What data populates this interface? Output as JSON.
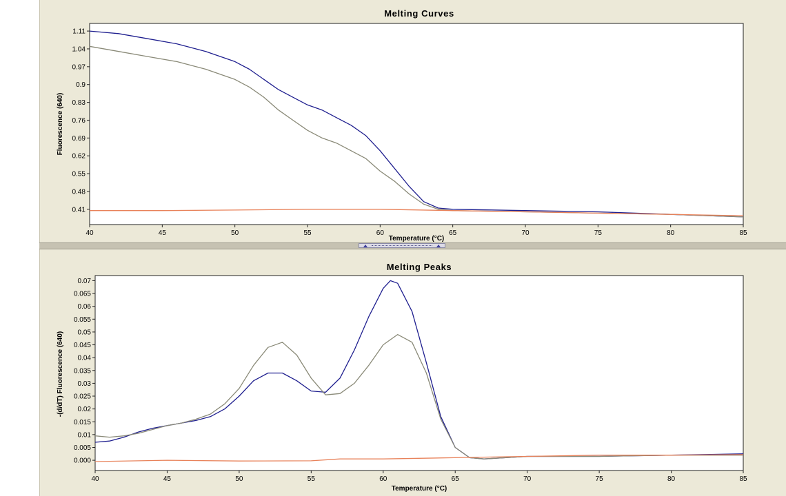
{
  "chart_data": [
    {
      "type": "line",
      "title": "Melting Curves",
      "xlabel": "Temperature (°C)",
      "ylabel": "Fluorescence (640)",
      "xlim": [
        40,
        85
      ],
      "ylim": [
        0.35,
        1.14
      ],
      "x_ticks": [
        "40",
        "45",
        "50",
        "55",
        "60",
        "65",
        "70",
        "75",
        "80",
        "85"
      ],
      "y_ticks": [
        "1.11",
        "1.04",
        "0.97",
        "0.9",
        "0.83",
        "0.76",
        "0.69",
        "0.62",
        "0.55",
        "0.48",
        "0.41"
      ],
      "grid": false,
      "series": [
        {
          "color": "#1f1f8f",
          "x": [
            40,
            42,
            44,
            46,
            48,
            50,
            51,
            52,
            53,
            54,
            55,
            56,
            57,
            58,
            59,
            60,
            61,
            62,
            63,
            64,
            65,
            70,
            75,
            80,
            85
          ],
          "y": [
            1.11,
            1.1,
            1.08,
            1.06,
            1.03,
            0.99,
            0.96,
            0.92,
            0.88,
            0.85,
            0.82,
            0.8,
            0.77,
            0.74,
            0.7,
            0.64,
            0.57,
            0.5,
            0.44,
            0.415,
            0.41,
            0.405,
            0.4,
            0.39,
            0.38
          ]
        },
        {
          "color": "#8a8a78",
          "x": [
            40,
            42,
            44,
            46,
            48,
            50,
            51,
            52,
            53,
            54,
            55,
            56,
            57,
            58,
            59,
            60,
            61,
            62,
            63,
            64,
            65,
            70,
            75,
            80,
            85
          ],
          "y": [
            1.05,
            1.03,
            1.01,
            0.99,
            0.96,
            0.92,
            0.89,
            0.85,
            0.8,
            0.76,
            0.72,
            0.69,
            0.67,
            0.64,
            0.61,
            0.56,
            0.52,
            0.47,
            0.43,
            0.41,
            0.405,
            0.4,
            0.395,
            0.39,
            0.38
          ]
        },
        {
          "color": "#e8825a",
          "x": [
            40,
            45,
            50,
            55,
            60,
            65,
            70,
            75,
            80,
            85
          ],
          "y": [
            0.405,
            0.405,
            0.407,
            0.41,
            0.41,
            0.405,
            0.4,
            0.395,
            0.39,
            0.385
          ]
        }
      ]
    },
    {
      "type": "line",
      "title": "Melting Peaks",
      "xlabel": "Temperature (°C)",
      "ylabel": "-(d/dT) Fluorescence (640)",
      "xlim": [
        40,
        85
      ],
      "ylim": [
        -0.004,
        0.072
      ],
      "x_ticks": [
        "40",
        "45",
        "50",
        "55",
        "60",
        "65",
        "70",
        "75",
        "80",
        "85"
      ],
      "y_ticks": [
        "0.07",
        "0.065",
        "0.06",
        "0.055",
        "0.05",
        "0.045",
        "0.04",
        "0.035",
        "0.03",
        "0.025",
        "0.02",
        "0.015",
        "0.01",
        "0.005",
        "0.000"
      ],
      "grid": false,
      "series": [
        {
          "color": "#1f1f8f",
          "x": [
            40,
            41,
            42,
            43,
            44,
            45,
            46,
            47,
            48,
            49,
            50,
            51,
            52,
            53,
            54,
            55,
            56,
            57,
            58,
            59,
            60,
            60.5,
            61,
            62,
            63,
            64,
            65,
            66,
            67,
            70,
            75,
            80,
            85
          ],
          "y": [
            0.007,
            0.0075,
            0.009,
            0.011,
            0.0125,
            0.0135,
            0.0145,
            0.0155,
            0.017,
            0.02,
            0.025,
            0.031,
            0.034,
            0.034,
            0.031,
            0.027,
            0.0265,
            0.032,
            0.043,
            0.056,
            0.067,
            0.07,
            0.069,
            0.058,
            0.038,
            0.017,
            0.005,
            0.001,
            0.0005,
            0.0015,
            0.0015,
            0.002,
            0.0025
          ]
        },
        {
          "color": "#8a8a78",
          "x": [
            40,
            41,
            42,
            43,
            44,
            45,
            46,
            47,
            48,
            49,
            50,
            51,
            52,
            53,
            54,
            55,
            56,
            57,
            58,
            59,
            60,
            61,
            62,
            63,
            64,
            65,
            66,
            67,
            70,
            75,
            80,
            85
          ],
          "y": [
            0.0095,
            0.009,
            0.0095,
            0.0105,
            0.012,
            0.0135,
            0.0145,
            0.016,
            0.018,
            0.022,
            0.028,
            0.037,
            0.044,
            0.046,
            0.041,
            0.032,
            0.0255,
            0.026,
            0.03,
            0.037,
            0.045,
            0.049,
            0.046,
            0.034,
            0.016,
            0.005,
            0.001,
            0.0005,
            0.0015,
            0.0015,
            0.002,
            0.002
          ]
        },
        {
          "color": "#e8825a",
          "x": [
            40,
            45,
            50,
            55,
            57,
            60,
            65,
            70,
            75,
            80,
            85
          ],
          "y": [
            -0.0005,
            0.0,
            -0.0003,
            -0.0002,
            0.0005,
            0.0005,
            0.001,
            0.0015,
            0.002,
            0.002,
            0.0022
          ]
        }
      ]
    }
  ]
}
